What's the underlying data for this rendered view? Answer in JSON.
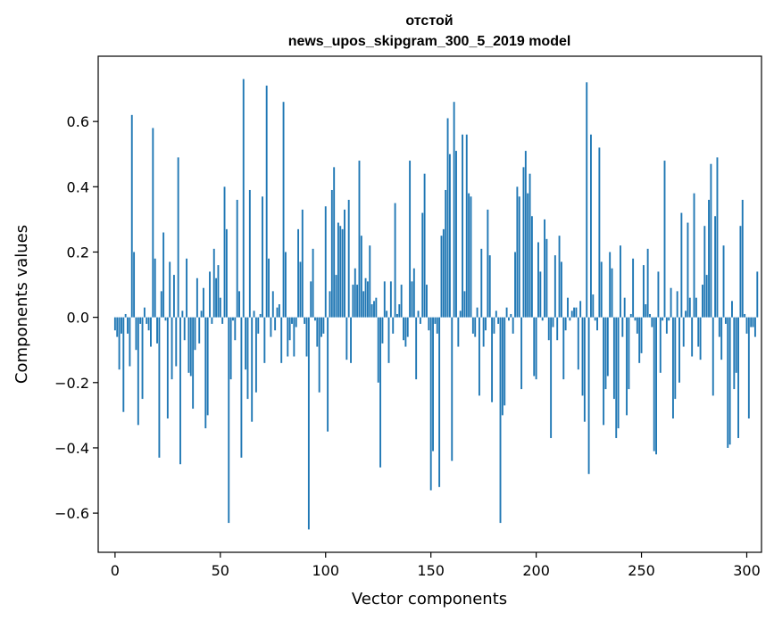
{
  "chart_data": {
    "type": "bar",
    "title": "отстой",
    "subtitle": "news_upos_skipgram_300_5_2019 model",
    "xlabel": "Vector components",
    "ylabel": "Components values",
    "xlim": [
      -8,
      307
    ],
    "ylim": [
      -0.72,
      0.8
    ],
    "xticks": [
      0,
      50,
      100,
      150,
      200,
      250,
      300
    ],
    "yticks": [
      -0.6,
      -0.4,
      -0.2,
      0.0,
      0.2,
      0.4,
      0.6
    ],
    "ytick_labels": [
      "−0.6",
      "−0.4",
      "−0.2",
      "0.0",
      "0.2",
      "0.4",
      "0.6"
    ],
    "xtick_labels": [
      "0",
      "50",
      "100",
      "150",
      "200",
      "250",
      "300"
    ],
    "bar_color": "#1f77b4",
    "values": [
      -0.04,
      -0.06,
      -0.16,
      -0.05,
      -0.29,
      0.01,
      -0.05,
      -0.15,
      0.62,
      0.2,
      -0.1,
      -0.33,
      -0.02,
      -0.25,
      0.03,
      -0.02,
      -0.04,
      -0.09,
      0.58,
      0.18,
      -0.08,
      -0.43,
      0.08,
      0.26,
      -0.01,
      -0.31,
      0.17,
      -0.19,
      0.13,
      -0.15,
      0.49,
      -0.45,
      0.02,
      -0.07,
      0.18,
      -0.17,
      -0.18,
      -0.28,
      -0.1,
      0.12,
      -0.08,
      0.02,
      0.09,
      -0.34,
      -0.3,
      0.14,
      -0.02,
      0.21,
      0.12,
      0.16,
      0.06,
      -0.02,
      0.4,
      0.27,
      -0.63,
      -0.19,
      -0.01,
      -0.07,
      0.36,
      0.08,
      -0.43,
      0.73,
      -0.16,
      -0.25,
      0.39,
      -0.32,
      0.02,
      -0.23,
      -0.05,
      0.01,
      0.37,
      -0.14,
      0.71,
      0.18,
      -0.06,
      0.08,
      -0.04,
      0.03,
      0.04,
      -0.14,
      0.66,
      0.2,
      -0.12,
      -0.07,
      -0.02,
      -0.12,
      -0.03,
      0.27,
      0.17,
      0.33,
      -0.02,
      -0.12,
      -0.65,
      0.11,
      0.21,
      -0.01,
      -0.09,
      -0.23,
      -0.06,
      -0.05,
      0.34,
      -0.35,
      0.08,
      0.39,
      0.46,
      0.13,
      0.29,
      0.28,
      0.27,
      0.33,
      -0.13,
      0.36,
      -0.14,
      0.1,
      0.15,
      0.1,
      0.48,
      0.25,
      0.08,
      0.12,
      0.11,
      0.22,
      0.04,
      0.05,
      0.06,
      -0.2,
      -0.46,
      -0.08,
      0.11,
      0.02,
      -0.14,
      0.11,
      -0.05,
      0.35,
      0.01,
      0.04,
      0.1,
      -0.07,
      -0.09,
      -0.06,
      0.48,
      0.11,
      0.15,
      -0.19,
      0.02,
      -0.02,
      0.32,
      0.44,
      0.1,
      -0.04,
      -0.53,
      -0.41,
      -0.02,
      -0.05,
      -0.52,
      0.25,
      0.27,
      0.39,
      0.61,
      0.5,
      -0.44,
      0.66,
      0.51,
      -0.09,
      0.02,
      0.56,
      0.08,
      0.56,
      0.38,
      0.37,
      -0.05,
      -0.06,
      0.03,
      -0.24,
      0.21,
      -0.09,
      -0.04,
      0.33,
      0.19,
      -0.26,
      -0.05,
      0.02,
      -0.02,
      -0.63,
      -0.3,
      -0.27,
      0.03,
      -0.01,
      0.01,
      -0.05,
      0.2,
      0.4,
      0.37,
      -0.22,
      0.46,
      0.51,
      0.38,
      0.44,
      0.31,
      -0.18,
      -0.19,
      0.23,
      0.14,
      -0.01,
      0.3,
      0.24,
      -0.07,
      -0.37,
      -0.03,
      0.19,
      -0.07,
      0.25,
      0.17,
      -0.19,
      -0.04,
      0.06,
      -0.01,
      0.02,
      0.03,
      0.03,
      -0.16,
      0.05,
      -0.24,
      -0.32,
      0.72,
      -0.48,
      0.56,
      0.07,
      -0.01,
      -0.04,
      0.52,
      0.17,
      -0.33,
      -0.22,
      -0.18,
      0.2,
      0.15,
      -0.25,
      -0.37,
      -0.34,
      0.22,
      -0.06,
      0.06,
      -0.3,
      -0.22,
      0.01,
      0.18,
      -0.01,
      -0.05,
      -0.14,
      -0.11,
      0.16,
      0.04,
      0.21,
      0.01,
      -0.03,
      -0.41,
      -0.42,
      0.14,
      -0.17,
      -0.01,
      0.48,
      -0.05,
      -0.01,
      0.09,
      -0.31,
      -0.25,
      0.08,
      -0.2,
      0.32,
      -0.09,
      0.02,
      0.29,
      0.06,
      -0.12,
      0.38,
      0.06,
      -0.09,
      -0.13,
      0.1,
      0.28,
      0.13,
      0.36,
      0.47,
      -0.24,
      0.31,
      0.49,
      -0.06,
      -0.13,
      0.22,
      -0.02,
      -0.4,
      -0.39,
      0.05,
      -0.22,
      -0.17,
      -0.37,
      0.28,
      0.36,
      0.01,
      -0.05,
      -0.31,
      -0.03,
      -0.03,
      -0.06,
      0.14
    ]
  }
}
